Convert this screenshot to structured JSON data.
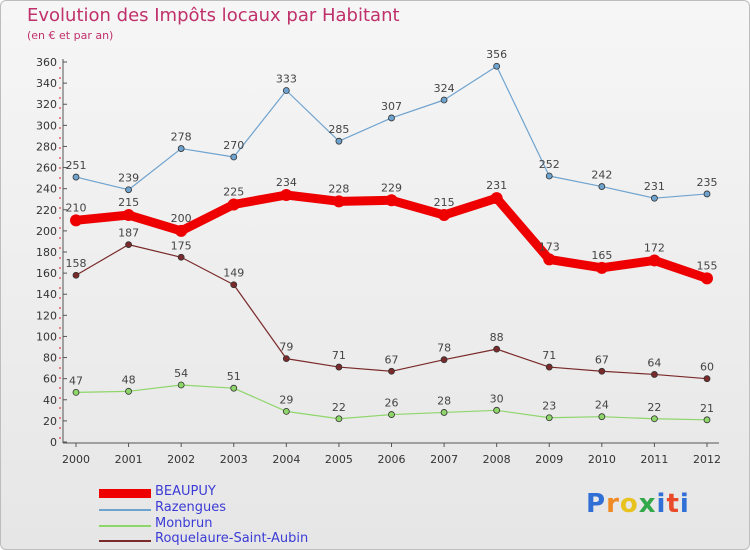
{
  "header": {
    "title": "Evolution des Impôts locaux par Habitant",
    "subtitle": "(en € et par an)"
  },
  "chart_data": {
    "type": "line",
    "title": "Evolution des Impôts locaux par Habitant",
    "subtitle": "(en € et par an)",
    "xlabel": "",
    "ylabel": "",
    "ylim": [
      0,
      360
    ],
    "ytick_step": 20,
    "grid": false,
    "legend_position": "bottom-left",
    "x": [
      "2000",
      "2001",
      "2002",
      "2003",
      "2004",
      "2005",
      "2006",
      "2007",
      "2008",
      "2009",
      "2010",
      "2011",
      "2012"
    ],
    "series": [
      {
        "name": "BEAUPUY",
        "color": "#ee0000",
        "values": [
          210,
          215,
          200,
          225,
          234,
          228,
          229,
          215,
          231,
          173,
          165,
          172,
          155
        ]
      },
      {
        "name": "Razengues",
        "color": "#6fa3cf",
        "values": [
          251,
          239,
          278,
          270,
          333,
          285,
          307,
          324,
          356,
          252,
          242,
          231,
          235
        ]
      },
      {
        "name": "Monbrun",
        "color": "#8ed66a",
        "values": [
          47,
          48,
          54,
          51,
          29,
          22,
          26,
          28,
          30,
          23,
          24,
          22,
          21
        ]
      },
      {
        "name": "Roquelaure-Saint-Aubin",
        "color": "#7a2a2a",
        "values": [
          158,
          187,
          175,
          149,
          79,
          71,
          67,
          78,
          88,
          71,
          67,
          64,
          60
        ]
      }
    ]
  },
  "legend": {
    "items": [
      {
        "label": "BEAUPUY",
        "color": "#ee0000"
      },
      {
        "label": "Razengues",
        "color": "#6fa3cf"
      },
      {
        "label": "Monbrun",
        "color": "#8ed66a"
      },
      {
        "label": "Roquelaure-Saint-Aubin",
        "color": "#7a2a2a"
      }
    ]
  },
  "logo": {
    "letters": [
      "P",
      "r",
      "o",
      "x",
      "i",
      "t",
      "i"
    ],
    "colors": [
      "#2f6fd6",
      "#f08a24",
      "#e8c21e",
      "#33a84a",
      "#2f6fd6",
      "#e84a2a",
      "#2f6fd6"
    ]
  }
}
